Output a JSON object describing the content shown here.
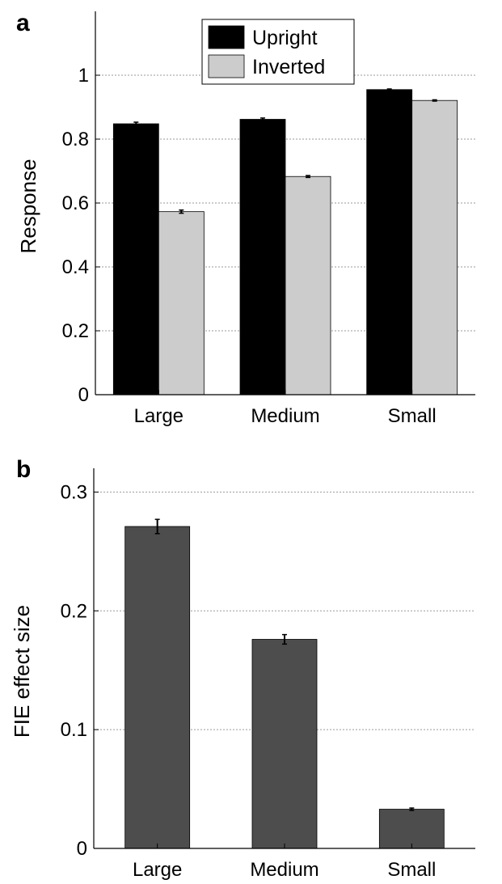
{
  "chart_data": [
    {
      "panel": "a",
      "type": "bar",
      "categories": [
        "Large",
        "Medium",
        "Small"
      ],
      "series": [
        {
          "name": "Upright",
          "values": [
            0.848,
            0.862,
            0.955
          ],
          "errors": [
            0.005,
            0.004,
            0.002
          ],
          "color": "#000000"
        },
        {
          "name": "Inverted",
          "values": [
            0.573,
            0.683,
            0.921
          ],
          "errors": [
            0.005,
            0.003,
            0.002
          ],
          "color": "#cccccc"
        }
      ],
      "ylabel": "Response",
      "ylim": [
        0,
        1.2
      ],
      "yticks": [
        0,
        0.2,
        0.4,
        0.6,
        0.8,
        1
      ],
      "ytick_labels": [
        "0",
        "0.2",
        "0.4",
        "0.6",
        "0.8",
        "1"
      ],
      "grid": true,
      "legend_position": "top-center"
    },
    {
      "panel": "b",
      "type": "bar",
      "categories": [
        "Large",
        "Medium",
        "Small"
      ],
      "series": [
        {
          "values": [
            0.271,
            0.176,
            0.033
          ],
          "errors": [
            0.006,
            0.004,
            0.001
          ],
          "color": "#4d4d4d"
        }
      ],
      "ylabel": "FIE  effect  size",
      "ylim": [
        0,
        0.32
      ],
      "yticks": [
        0,
        0.1,
        0.2,
        0.3
      ],
      "ytick_labels": [
        "0",
        "0.1",
        "0.2",
        "0.3"
      ],
      "grid": true
    }
  ]
}
